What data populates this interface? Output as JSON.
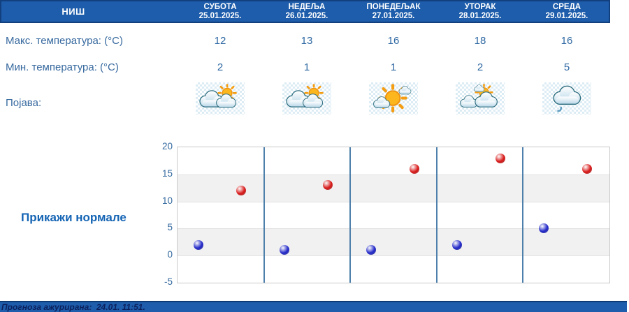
{
  "station": {
    "name": "НИШ"
  },
  "labels": {
    "max_temp": "Макс. температура: (°C)",
    "min_temp": "Мин. температура: (°C)",
    "phenomena": "Појава:",
    "show_normals": "Прикажи нормале",
    "updated": "Прогноза ажурирана:  24.01. 11:51."
  },
  "days": [
    {
      "name": "СУБОТА",
      "date": "25.01.2025.",
      "max": "12",
      "min": "2",
      "icon": "partly-cloudy"
    },
    {
      "name": "НЕДЕЉА",
      "date": "26.01.2025.",
      "max": "13",
      "min": "1",
      "icon": "partly-cloudy"
    },
    {
      "name": "ПОНЕДЕЉАК",
      "date": "27.01.2025.",
      "max": "16",
      "min": "1",
      "icon": "mostly-sunny"
    },
    {
      "name": "УТОРАК",
      "date": "28.01.2025.",
      "max": "18",
      "min": "2",
      "icon": "sun-behind-clouds"
    },
    {
      "name": "СРЕДА",
      "date": "29.01.2025.",
      "max": "16",
      "min": "5",
      "icon": "cloudy-drizzle"
    }
  ],
  "colors": {
    "header_bg": "#1e5dab",
    "header_border": "#123f7e",
    "table_text": "#2f69a3",
    "link_blue": "#1464b4",
    "day_separator": "#4e80ab",
    "band_gray": "#f1f1f1",
    "min_dot": "#2026c8",
    "max_dot": "#d81717"
  },
  "chart_data": {
    "type": "scatter",
    "title": "",
    "xlabel": "",
    "ylabel": "",
    "categories": [
      "СУБОТА 25.01.2025.",
      "НЕДЕЉА 26.01.2025.",
      "ПОНЕДЕЉАК 27.01.2025.",
      "УТОРАК 28.01.2025.",
      "СРЕДА 29.01.2025."
    ],
    "series": [
      {
        "name": "Мин. температура (°C)",
        "color": "#2026c8",
        "values": [
          2,
          1,
          1,
          2,
          5
        ]
      },
      {
        "name": "Макс. температура (°C)",
        "color": "#d81717",
        "values": [
          12,
          13,
          16,
          18,
          16
        ]
      }
    ],
    "ylim": [
      -5,
      20
    ],
    "yticks": [
      20,
      15,
      10,
      5,
      0,
      -5
    ],
    "grid": "alternating horizontal gray bands every 5°, blue vertical day separators",
    "legend": "none"
  }
}
